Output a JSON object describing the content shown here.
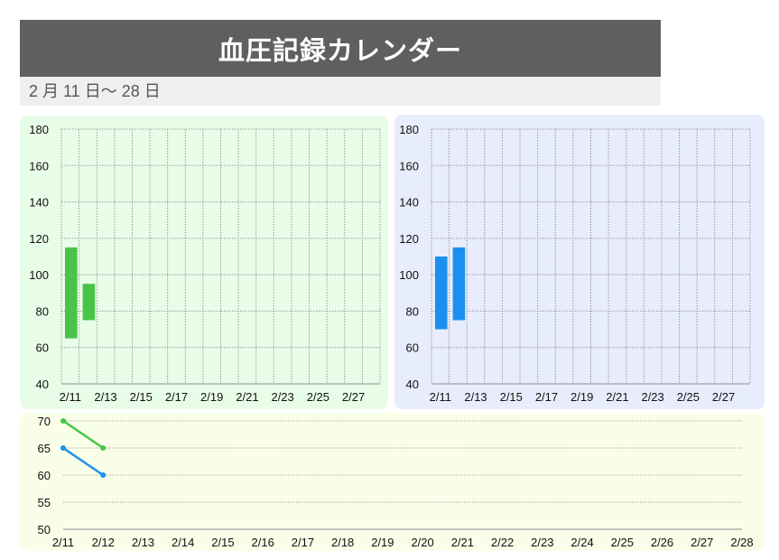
{
  "header": {
    "title": "血圧記録カレンダー",
    "date_range": "2 月 11 日〜 28 日"
  },
  "colors": {
    "systolic": "#48c448",
    "diastolic": "#1c90f0",
    "title_bg": "#5f5f5f",
    "green_panel_bg": "#e8fde8",
    "blue_panel_bg": "#e8edfd",
    "bottom_panel_bg": "#f9fee9"
  },
  "chart_data": [
    {
      "type": "bar",
      "subtype": "floating-range",
      "title": "",
      "categories": [
        "2/11",
        "2/12",
        "2/13",
        "2/14",
        "2/15",
        "2/16",
        "2/17",
        "2/18",
        "2/19",
        "2/20",
        "2/21",
        "2/22",
        "2/23",
        "2/24",
        "2/25",
        "2/26",
        "2/27",
        "2/28"
      ],
      "tick_labels": [
        "2/11",
        "2/13",
        "2/15",
        "2/17",
        "2/19",
        "2/21",
        "2/23",
        "2/25",
        "2/27"
      ],
      "series": [
        {
          "name": "green",
          "color": "#48c448",
          "ranges": [
            [
              65,
              115
            ],
            [
              75,
              95
            ]
          ]
        }
      ],
      "ylim": [
        40,
        180
      ],
      "yticks": [
        40,
        60,
        80,
        100,
        120,
        140,
        160,
        180
      ],
      "grid": true
    },
    {
      "type": "bar",
      "subtype": "floating-range",
      "title": "",
      "categories": [
        "2/11",
        "2/12",
        "2/13",
        "2/14",
        "2/15",
        "2/16",
        "2/17",
        "2/18",
        "2/19",
        "2/20",
        "2/21",
        "2/22",
        "2/23",
        "2/24",
        "2/25",
        "2/26",
        "2/27",
        "2/28"
      ],
      "tick_labels": [
        "2/11",
        "2/13",
        "2/15",
        "2/17",
        "2/19",
        "2/21",
        "2/23",
        "2/25",
        "2/27"
      ],
      "series": [
        {
          "name": "blue",
          "color": "#1c90f0",
          "ranges": [
            [
              70,
              110
            ],
            [
              75,
              115
            ]
          ]
        }
      ],
      "ylim": [
        40,
        180
      ],
      "yticks": [
        40,
        60,
        80,
        100,
        120,
        140,
        160,
        180
      ],
      "grid": true
    },
    {
      "type": "line",
      "title": "",
      "x": [
        "2/11",
        "2/12",
        "2/13",
        "2/14",
        "2/15",
        "2/16",
        "2/17",
        "2/18",
        "2/19",
        "2/20",
        "2/21",
        "2/22",
        "2/23",
        "2/24",
        "2/25",
        "2/26",
        "2/27",
        "2/28"
      ],
      "series": [
        {
          "name": "green",
          "color": "#48c448",
          "values": [
            70,
            65
          ]
        },
        {
          "name": "blue",
          "color": "#1c90f0",
          "values": [
            65,
            60
          ]
        }
      ],
      "ylim": [
        50,
        70
      ],
      "yticks": [
        50,
        55,
        60,
        65,
        70
      ],
      "grid": true
    }
  ]
}
